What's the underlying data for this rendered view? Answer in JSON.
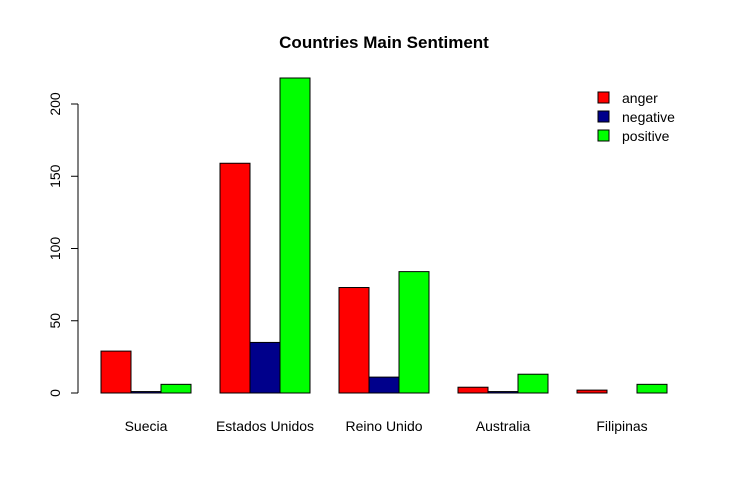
{
  "chart_data": {
    "type": "bar",
    "title": "Countries Main Sentiment",
    "xlabel": "",
    "ylabel": "",
    "categories": [
      "Suecia",
      "Estados Unidos",
      "Reino Unido",
      "Australia",
      "Filipinas"
    ],
    "series": [
      {
        "name": "anger",
        "color": "#ff0000",
        "values": [
          29,
          159,
          73,
          4,
          2
        ]
      },
      {
        "name": "negative",
        "color": "#00008b",
        "values": [
          1,
          35,
          11,
          1,
          0
        ]
      },
      {
        "name": "positive",
        "color": "#00ff00",
        "values": [
          6,
          218,
          84,
          13,
          6
        ]
      }
    ],
    "ylim": [
      0,
      218
    ],
    "yticks": [
      0,
      50,
      100,
      150,
      200
    ],
    "grid": false,
    "legend_position": "top-right"
  }
}
